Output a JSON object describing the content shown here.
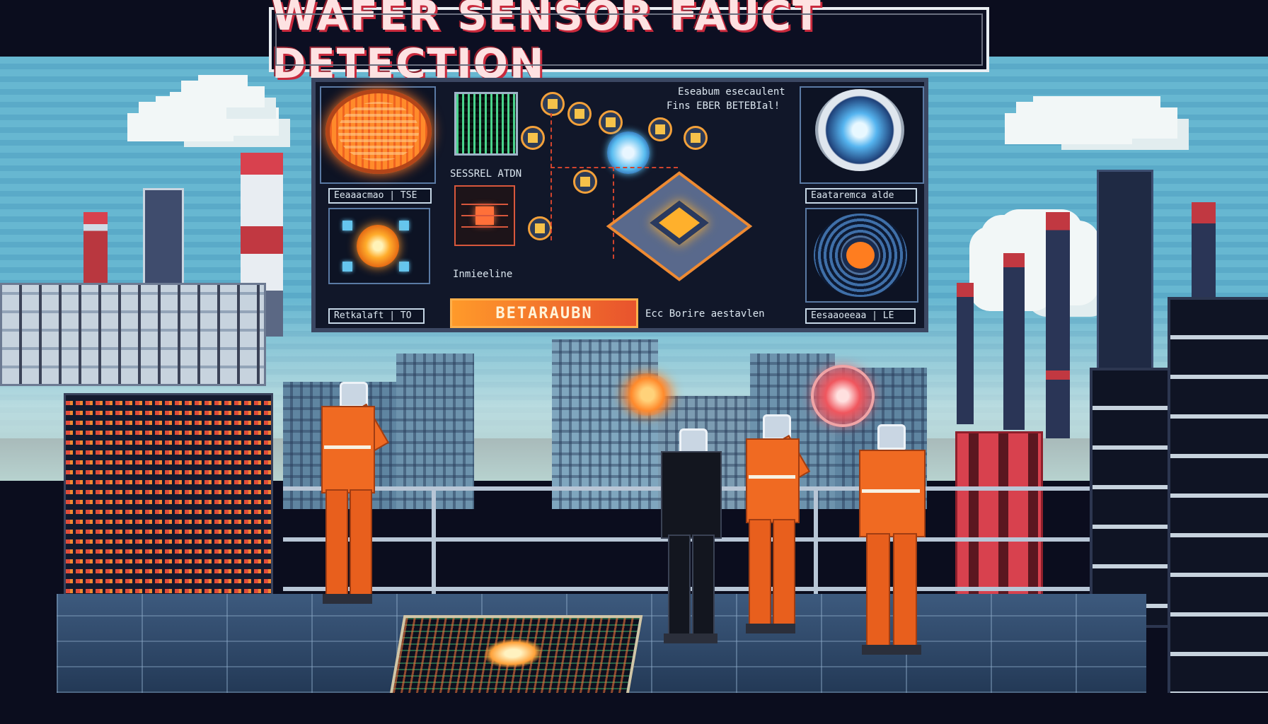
{
  "title": "WAFER SENSOR FAUCT DETECTION",
  "monitor": {
    "top_caption_line1": "Eseabum esecaulent",
    "top_caption_line2": "Fins EBER BETEBIal!",
    "label_wafer": "Eeaaacmao | TSE",
    "label_chip": "SESSREL ATDN",
    "label_wafer_right": "Eaataremca alde",
    "label_wafer_left_bottom": "Retkalaft | TO",
    "label_mid": "Inmieeline",
    "label_bottom_right": "Ecc Borire aestavlen",
    "label_ring": "Eesaaoeeaa | LE",
    "alert": "BETARAUBN"
  },
  "colors": {
    "title_fill": "#fde2e2",
    "title_shadow": "#c92a3d",
    "alert_bg": "#ff9a2a",
    "hazard_orange": "#f06a22",
    "sky": "#67b7d1"
  },
  "icons": [
    "wafer-orange-icon",
    "chip-icon",
    "cpu-icon",
    "wafer-blue-icon",
    "wafer-ring-icon",
    "bug-icon",
    "question-hologram-icon",
    "chip-hologram-icon"
  ]
}
